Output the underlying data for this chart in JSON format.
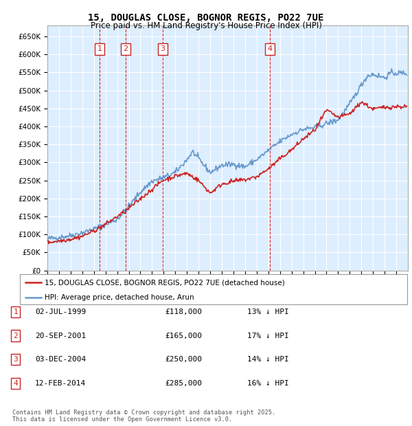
{
  "title": "15, DOUGLAS CLOSE, BOGNOR REGIS, PO22 7UE",
  "subtitle": "Price paid vs. HM Land Registry's House Price Index (HPI)",
  "yticks": [
    0,
    50000,
    100000,
    150000,
    200000,
    250000,
    300000,
    350000,
    400000,
    450000,
    500000,
    550000,
    600000,
    650000
  ],
  "xlim_start": 1995.0,
  "xlim_end": 2026.0,
  "ylim": [
    0,
    680000
  ],
  "plot_bg": "#ddeeff",
  "grid_color": "#ffffff",
  "transactions": [
    {
      "id": 1,
      "date_str": "02-JUL-1999",
      "date_x": 1999.5,
      "price": 118000,
      "pct": "13%",
      "dir": "↓"
    },
    {
      "id": 2,
      "date_str": "20-SEP-2001",
      "date_x": 2001.72,
      "price": 165000,
      "pct": "17%",
      "dir": "↓"
    },
    {
      "id": 3,
      "date_str": "03-DEC-2004",
      "date_x": 2004.92,
      "price": 250000,
      "pct": "14%",
      "dir": "↓"
    },
    {
      "id": 4,
      "date_str": "12-FEB-2014",
      "date_x": 2014.12,
      "price": 285000,
      "pct": "16%",
      "dir": "↓"
    }
  ],
  "legend_line1": "15, DOUGLAS CLOSE, BOGNOR REGIS, PO22 7UE (detached house)",
  "legend_line2": "HPI: Average price, detached house, Arun",
  "footer": "Contains HM Land Registry data © Crown copyright and database right 2025.\nThis data is licensed under the Open Government Licence v3.0.",
  "hpi_color": "#6699cc",
  "price_color": "#cc2222",
  "vline_color": "#dd2222",
  "box_color": "#cc2222",
  "hpi_anchors_x": [
    1995,
    1996,
    1997,
    1998,
    1999,
    2000,
    2001,
    2002,
    2003,
    2004,
    2005,
    2006,
    2007,
    2007.5,
    2008,
    2009,
    2010,
    2011,
    2012,
    2013,
    2014,
    2015,
    2016,
    2017,
    2018,
    2019,
    2020,
    2020.5,
    2021,
    2022,
    2022.5,
    2023,
    2024,
    2024.5,
    2025,
    2025.9
  ],
  "hpi_anchors_y": [
    88000,
    92000,
    97000,
    105000,
    115000,
    128000,
    142000,
    178000,
    218000,
    248000,
    258000,
    272000,
    308000,
    330000,
    310000,
    272000,
    292000,
    295000,
    288000,
    308000,
    333000,
    358000,
    378000,
    392000,
    397000,
    408000,
    418000,
    440000,
    462000,
    515000,
    540000,
    545000,
    535000,
    548000,
    548000,
    548000
  ],
  "price_anchors_x": [
    1995,
    1996,
    1997,
    1998,
    1999.5,
    2001.72,
    2004.92,
    2006,
    2007,
    2008,
    2009,
    2010,
    2011,
    2012,
    2013,
    2014.12,
    2015,
    2016,
    2017,
    2018,
    2019,
    2020,
    2021,
    2022,
    2023,
    2024,
    2025,
    2025.9
  ],
  "price_anchors_y": [
    78000,
    82000,
    87000,
    95000,
    118000,
    165000,
    250000,
    262000,
    270000,
    250000,
    215000,
    240000,
    248000,
    252000,
    260000,
    285000,
    310000,
    335000,
    365000,
    390000,
    445000,
    425000,
    435000,
    468000,
    448000,
    453000,
    455000,
    455000
  ]
}
